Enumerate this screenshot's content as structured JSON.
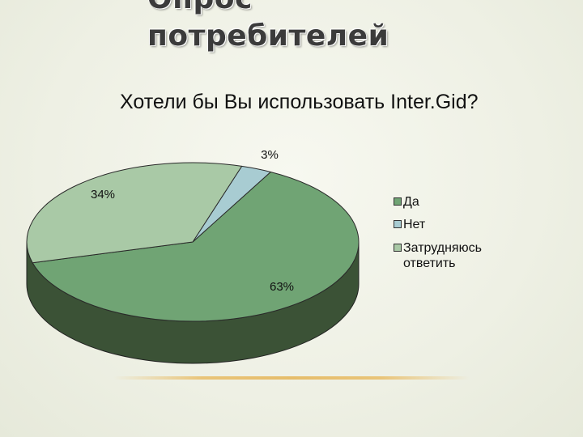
{
  "slide": {
    "title_lines": [
      "Опрос",
      "потребителей"
    ]
  },
  "chart_data": {
    "type": "pie",
    "title": "Хотели бы Вы использовать Inter.Gid?",
    "slices": [
      {
        "label": "Да",
        "value": 63,
        "data_label": "63%",
        "color": "#70a474",
        "side_color": "#3b5236"
      },
      {
        "label": "Нет",
        "value": 3,
        "data_label": "3%",
        "color": "#a8ccd2",
        "side_color": "#3b5236"
      },
      {
        "label": "Затрудняюсь ответить",
        "value": 34,
        "data_label": "34%",
        "color": "#a9c9a6",
        "side_color": "#3b5236"
      }
    ],
    "legend_position": "right",
    "three_d": true
  }
}
